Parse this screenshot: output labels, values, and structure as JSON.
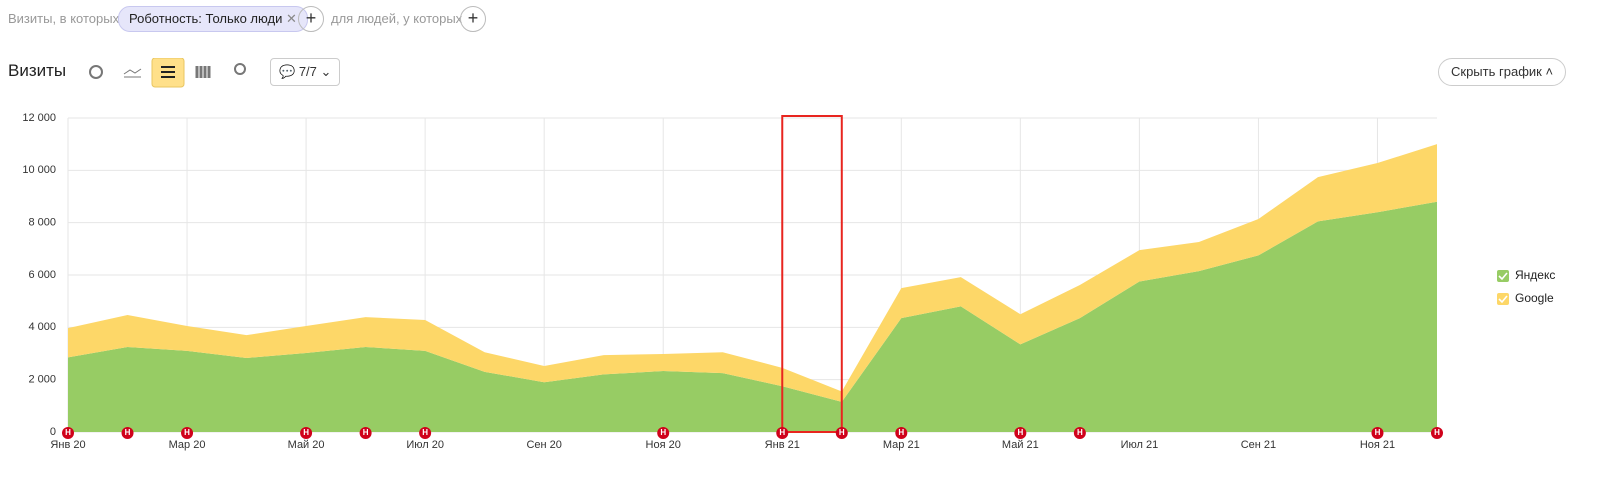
{
  "filters": {
    "prefix": "Визиты, в которых",
    "chip": "Роботность: Только люди",
    "suffix": "для людей, у которых"
  },
  "toolbar": {
    "title": "Визиты",
    "comments": "7/7",
    "hide": "Скрыть график"
  },
  "chart_data": {
    "type": "stacked_area",
    "categories": [
      "Янв 20",
      null,
      "Мар 20",
      null,
      "Май 20",
      null,
      "Июл 20",
      null,
      "Сен 20",
      null,
      "Ноя 20",
      null,
      "Янв 21",
      null,
      "Мар 21",
      null,
      "Май 21",
      null,
      "Июл 21",
      null,
      "Сен 21",
      null,
      "Ноя 21",
      null
    ],
    "series": [
      {
        "name": "Яндекс",
        "color": "#97cc64",
        "values": [
          2850,
          3250,
          3100,
          2830,
          3020,
          3250,
          3100,
          2300,
          1900,
          2200,
          2330,
          2250,
          1750,
          1150,
          4350,
          4800,
          3350,
          4350,
          5750,
          6150,
          6750,
          8050,
          8400,
          8800
        ]
      },
      {
        "name": "Google",
        "color": "#fdd768",
        "values": [
          1120,
          1220,
          950,
          870,
          1030,
          1140,
          1180,
          750,
          620,
          740,
          650,
          800,
          700,
          400,
          1150,
          1120,
          1150,
          1270,
          1200,
          1110,
          1390,
          1690,
          1880,
          2200
        ]
      }
    ],
    "annotation_labels": [
      "Н",
      "Н",
      "Н",
      null,
      "Н",
      "Н",
      "Н",
      null,
      null,
      null,
      "Н",
      null,
      "Н",
      "Н",
      "Н",
      null,
      "Н",
      "Н",
      null,
      null,
      null,
      null,
      "Н",
      "Н"
    ],
    "ylim": [
      0,
      12000
    ],
    "yticks": [
      0,
      {
        "value": 2000,
        "label": "2 000"
      },
      {
        "value": 4000,
        "label": "4 000"
      },
      {
        "value": 6000,
        "label": "6 000"
      },
      {
        "value": 8000,
        "label": "8 000"
      },
      {
        "value": 10000,
        "label": "10 000"
      },
      {
        "value": 12000,
        "label": "12 000"
      }
    ],
    "grid": true,
    "legend": "right"
  }
}
